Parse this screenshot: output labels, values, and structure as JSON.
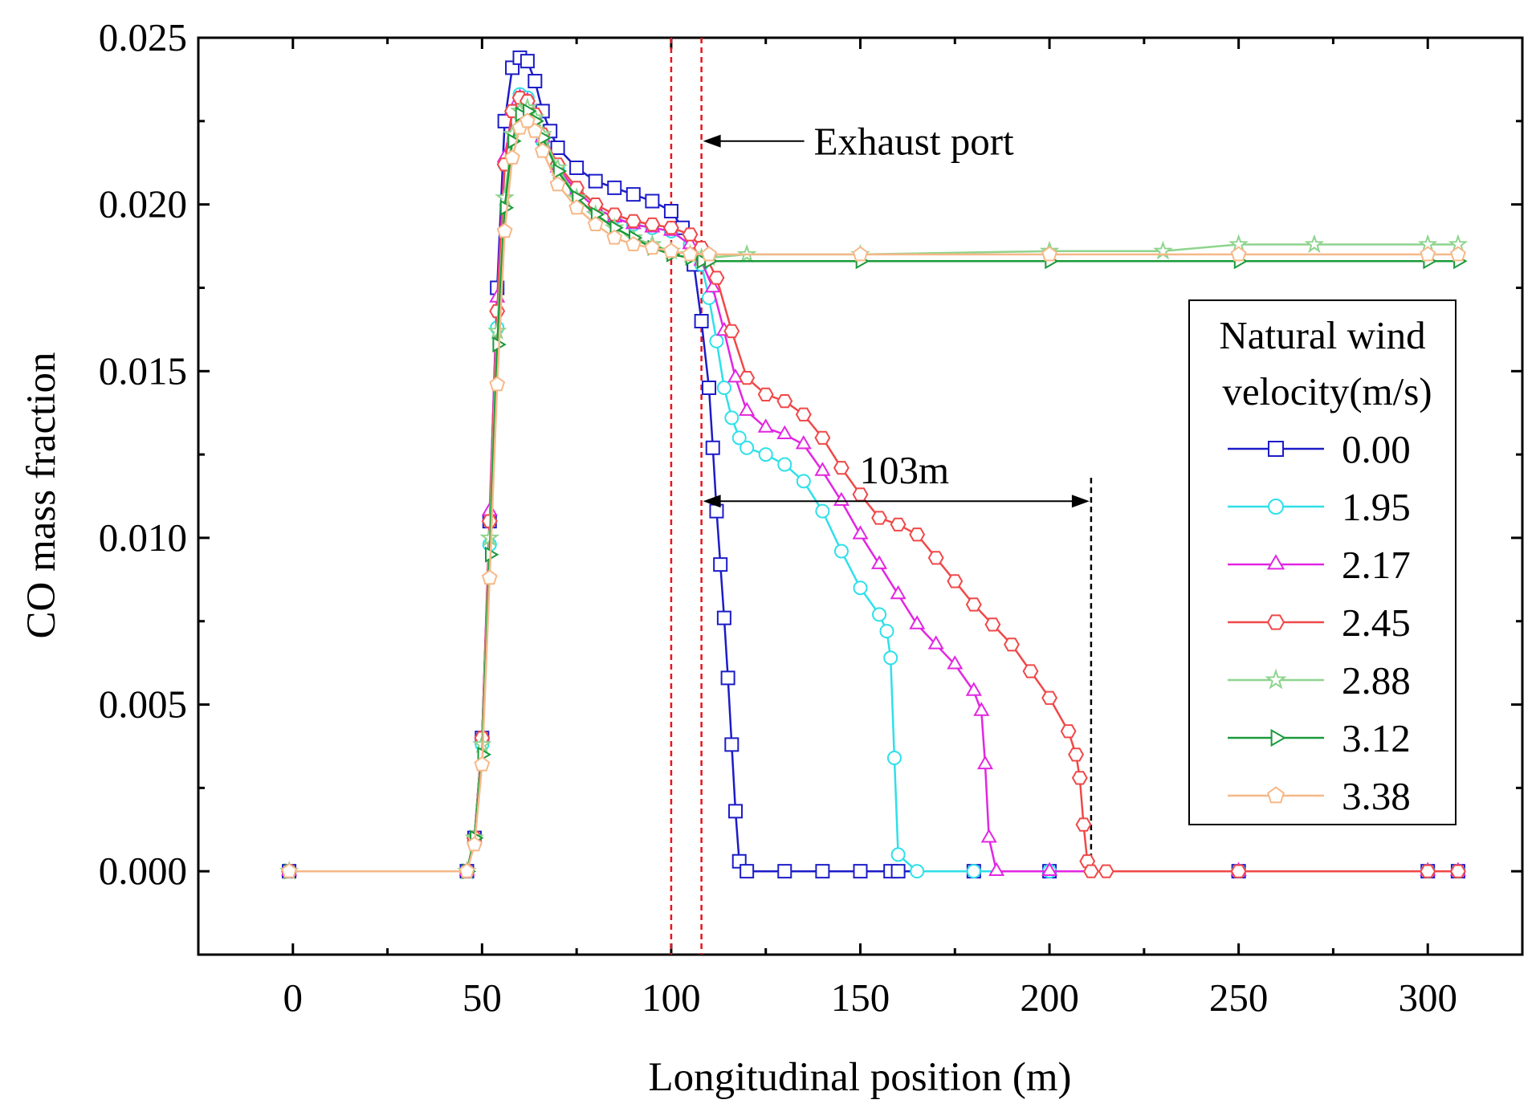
{
  "chart_data": {
    "type": "line",
    "title": "",
    "xlabel": "Longitudinal position (m)",
    "ylabel": "CO mass fraction",
    "xlim": [
      -25,
      325
    ],
    "ylim": [
      -0.0025,
      0.025
    ],
    "xticks": [
      0,
      50,
      100,
      150,
      200,
      250,
      300
    ],
    "xtick_labels": [
      "0",
      "50",
      "100",
      "150",
      "200",
      "250",
      "300"
    ],
    "yticks": [
      0.0,
      0.005,
      0.01,
      0.015,
      0.02,
      0.025
    ],
    "ytick_labels": [
      "0.000",
      "0.005",
      "0.010",
      "0.015",
      "0.020",
      "0.025"
    ],
    "grid": false,
    "legend": {
      "title_line1": "Natural wind",
      "title_line2": "velocity(m/s)",
      "placement": "right"
    },
    "reference_lines": [
      {
        "x": 100,
        "color": "#e8141c",
        "style": "dashed"
      },
      {
        "x": 108,
        "color": "#e8141c",
        "style": "dashed"
      },
      {
        "x": 211,
        "color": "#000000",
        "style": "dashed"
      }
    ],
    "annotations": {
      "exhaust_port": {
        "text": "Exhaust port",
        "arrow_x": 108,
        "y": 0.0219
      },
      "span": {
        "text": "103m",
        "x_start": 108,
        "x_end": 211,
        "y": 0.0111
      }
    },
    "series": [
      {
        "name": "0.00",
        "color": "#1c1cc8",
        "marker": "square",
        "x": [
          -1,
          46,
          48,
          50,
          52,
          54,
          56,
          58,
          60,
          62,
          64,
          66,
          68,
          70,
          75,
          80,
          85,
          90,
          95,
          100,
          103,
          106,
          108,
          110,
          111,
          112,
          113,
          114,
          115,
          116,
          117,
          118,
          120,
          130,
          140,
          150,
          158,
          160,
          180,
          200,
          250,
          300,
          308
        ],
        "y": [
          0.0,
          0.0,
          0.001,
          0.004,
          0.0105,
          0.0175,
          0.0225,
          0.0241,
          0.0244,
          0.0243,
          0.0237,
          0.0228,
          0.0222,
          0.0217,
          0.0211,
          0.0207,
          0.0205,
          0.0203,
          0.0201,
          0.0198,
          0.0193,
          0.0182,
          0.0165,
          0.0145,
          0.0127,
          0.0108,
          0.0092,
          0.0076,
          0.0058,
          0.0038,
          0.0018,
          0.0003,
          0.0,
          0.0,
          0.0,
          0.0,
          0.0,
          0.0,
          0.0,
          0.0,
          0.0,
          0.0,
          0.0
        ]
      },
      {
        "name": "1.95",
        "color": "#2ee0ea",
        "marker": "circle",
        "x": [
          -1,
          46,
          48,
          50,
          52,
          54,
          56,
          58,
          60,
          62,
          64,
          66,
          70,
          75,
          80,
          85,
          90,
          95,
          100,
          105,
          108,
          110,
          112,
          114,
          116,
          118,
          120,
          125,
          130,
          135,
          140,
          145,
          150,
          155,
          157,
          158,
          159,
          160,
          165,
          180,
          200,
          250,
          300,
          308
        ],
        "y": [
          0.0,
          0.0,
          0.001,
          0.0038,
          0.0098,
          0.0163,
          0.0212,
          0.0228,
          0.0233,
          0.0232,
          0.0226,
          0.0219,
          0.0211,
          0.0204,
          0.0199,
          0.0196,
          0.0194,
          0.0193,
          0.0192,
          0.0188,
          0.0182,
          0.0172,
          0.0159,
          0.0145,
          0.0136,
          0.013,
          0.0127,
          0.0125,
          0.0122,
          0.0117,
          0.0108,
          0.0096,
          0.0085,
          0.0077,
          0.0072,
          0.0064,
          0.0034,
          0.0005,
          0.0,
          0.0,
          0.0,
          0.0,
          0.0,
          0.0
        ]
      },
      {
        "name": "2.17",
        "color": "#e226e2",
        "marker": "triangle",
        "x": [
          -1,
          46,
          48,
          50,
          52,
          54,
          56,
          58,
          60,
          62,
          64,
          66,
          70,
          75,
          80,
          85,
          90,
          95,
          100,
          105,
          108,
          111,
          114,
          117,
          120,
          125,
          130,
          135,
          140,
          145,
          150,
          155,
          160,
          165,
          170,
          175,
          180,
          182,
          183,
          184,
          186,
          200,
          250,
          300,
          308
        ],
        "y": [
          0.0,
          0.0,
          0.001,
          0.004,
          0.0108,
          0.0172,
          0.0214,
          0.0228,
          0.0232,
          0.0231,
          0.0226,
          0.022,
          0.0211,
          0.0204,
          0.0199,
          0.0196,
          0.0194,
          0.0193,
          0.0192,
          0.0188,
          0.0183,
          0.0175,
          0.0162,
          0.0148,
          0.0138,
          0.0133,
          0.0131,
          0.0128,
          0.012,
          0.0111,
          0.0101,
          0.0092,
          0.0083,
          0.0074,
          0.0068,
          0.0062,
          0.0054,
          0.0048,
          0.0032,
          0.001,
          0.0,
          0.0,
          0.0,
          0.0,
          0.0
        ]
      },
      {
        "name": "2.45",
        "color": "#f04848",
        "marker": "hexagon",
        "x": [
          -1,
          46,
          48,
          50,
          52,
          54,
          56,
          58,
          60,
          62,
          64,
          66,
          70,
          75,
          80,
          85,
          90,
          95,
          100,
          105,
          108,
          112,
          116,
          120,
          125,
          130,
          135,
          140,
          145,
          150,
          155,
          160,
          165,
          170,
          175,
          180,
          185,
          190,
          195,
          200,
          205,
          207,
          208,
          209,
          210,
          211,
          215,
          250,
          300,
          308
        ],
        "y": [
          0.0,
          0.0,
          0.001,
          0.004,
          0.0105,
          0.0168,
          0.0212,
          0.0228,
          0.0232,
          0.0231,
          0.0227,
          0.0221,
          0.0212,
          0.0205,
          0.02,
          0.0197,
          0.0195,
          0.0194,
          0.0193,
          0.0191,
          0.0187,
          0.0178,
          0.0162,
          0.0148,
          0.0143,
          0.0141,
          0.0137,
          0.013,
          0.0121,
          0.0113,
          0.0106,
          0.0104,
          0.0101,
          0.0094,
          0.0087,
          0.008,
          0.0074,
          0.0068,
          0.006,
          0.0052,
          0.0042,
          0.0035,
          0.0028,
          0.0014,
          0.0003,
          0.0,
          0.0,
          0.0,
          0.0,
          0.0
        ]
      },
      {
        "name": "2.88",
        "color": "#8ed48e",
        "marker": "star",
        "x": [
          -1,
          46,
          48,
          50,
          52,
          54,
          56,
          58,
          60,
          62,
          64,
          66,
          70,
          75,
          80,
          85,
          90,
          95,
          100,
          105,
          108,
          110,
          120,
          150,
          200,
          230,
          250,
          270,
          300,
          308
        ],
        "y": [
          0.0,
          0.0,
          0.001,
          0.0038,
          0.01,
          0.0162,
          0.0202,
          0.0221,
          0.0228,
          0.0229,
          0.0226,
          0.0221,
          0.0211,
          0.0202,
          0.0197,
          0.0193,
          0.019,
          0.0188,
          0.0186,
          0.0185,
          0.0184,
          0.0184,
          0.0185,
          0.0185,
          0.0186,
          0.0186,
          0.0188,
          0.0188,
          0.0188,
          0.0188
        ]
      },
      {
        "name": "3.12",
        "color": "#1a9a3a",
        "marker": "triangle-right",
        "x": [
          -1,
          46,
          48,
          50,
          52,
          54,
          56,
          58,
          60,
          62,
          64,
          66,
          70,
          75,
          80,
          85,
          90,
          95,
          100,
          105,
          108,
          110,
          150,
          200,
          250,
          300,
          308
        ],
        "y": [
          0.0,
          0.0,
          0.001,
          0.0035,
          0.0095,
          0.0158,
          0.0199,
          0.0219,
          0.0227,
          0.0228,
          0.0225,
          0.022,
          0.021,
          0.0202,
          0.0197,
          0.0193,
          0.019,
          0.0187,
          0.0185,
          0.0184,
          0.0183,
          0.0183,
          0.0183,
          0.0183,
          0.0183,
          0.0183,
          0.0183
        ]
      },
      {
        "name": "3.38",
        "color": "#f6b888",
        "marker": "pentagon",
        "x": [
          -1,
          46,
          48,
          50,
          52,
          54,
          56,
          58,
          60,
          62,
          64,
          66,
          70,
          75,
          80,
          85,
          90,
          95,
          100,
          105,
          110,
          150,
          200,
          250,
          300,
          308
        ],
        "y": [
          0.0,
          0.0,
          0.0008,
          0.0032,
          0.0088,
          0.0146,
          0.0192,
          0.0214,
          0.0223,
          0.0225,
          0.0222,
          0.0216,
          0.0206,
          0.0199,
          0.0194,
          0.019,
          0.0188,
          0.0187,
          0.0186,
          0.0185,
          0.0185,
          0.0185,
          0.0185,
          0.0185,
          0.0185,
          0.0185
        ]
      }
    ]
  }
}
